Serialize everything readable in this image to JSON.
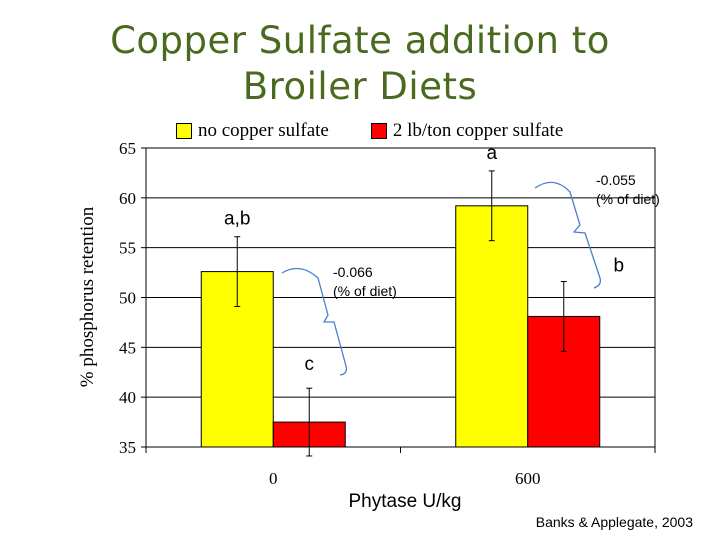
{
  "title_lines": [
    "Copper Sulfate addition to",
    "Broiler Diets"
  ],
  "credit": "Banks & Applegate, 2003",
  "colors": {
    "title": "#4a6b1f",
    "series1": "#ffff00",
    "series2": "#ff0000",
    "bracket": "#4a7fd0"
  },
  "chart_data": {
    "type": "bar",
    "title": "Copper Sulfate addition to Broiler Diets",
    "xlabel": "Phytase U/kg",
    "ylabel": "% phosphorus retention",
    "categories": [
      "0",
      "600"
    ],
    "ylim": [
      35,
      65
    ],
    "yticks": [
      35,
      40,
      45,
      50,
      55,
      60,
      65
    ],
    "grid": true,
    "legend_position": "top",
    "series": [
      {
        "name": "no copper sulfate",
        "color": "#ffff00",
        "values": [
          52.6,
          59.2
        ],
        "error": [
          3.5,
          3.5
        ],
        "labels": [
          "a,b",
          "a"
        ]
      },
      {
        "name": "2 lb/ton copper sulfate",
        "color": "#ff0000",
        "values": [
          37.5,
          48.1
        ],
        "error": [
          3.4,
          3.5
        ],
        "labels": [
          "c",
          "b"
        ]
      }
    ],
    "annotations": [
      {
        "category_index": 0,
        "line1": "-0.066",
        "line2": "(% of diet)"
      },
      {
        "category_index": 1,
        "line1": "-0.055",
        "line2": "(% of diet)"
      }
    ]
  }
}
